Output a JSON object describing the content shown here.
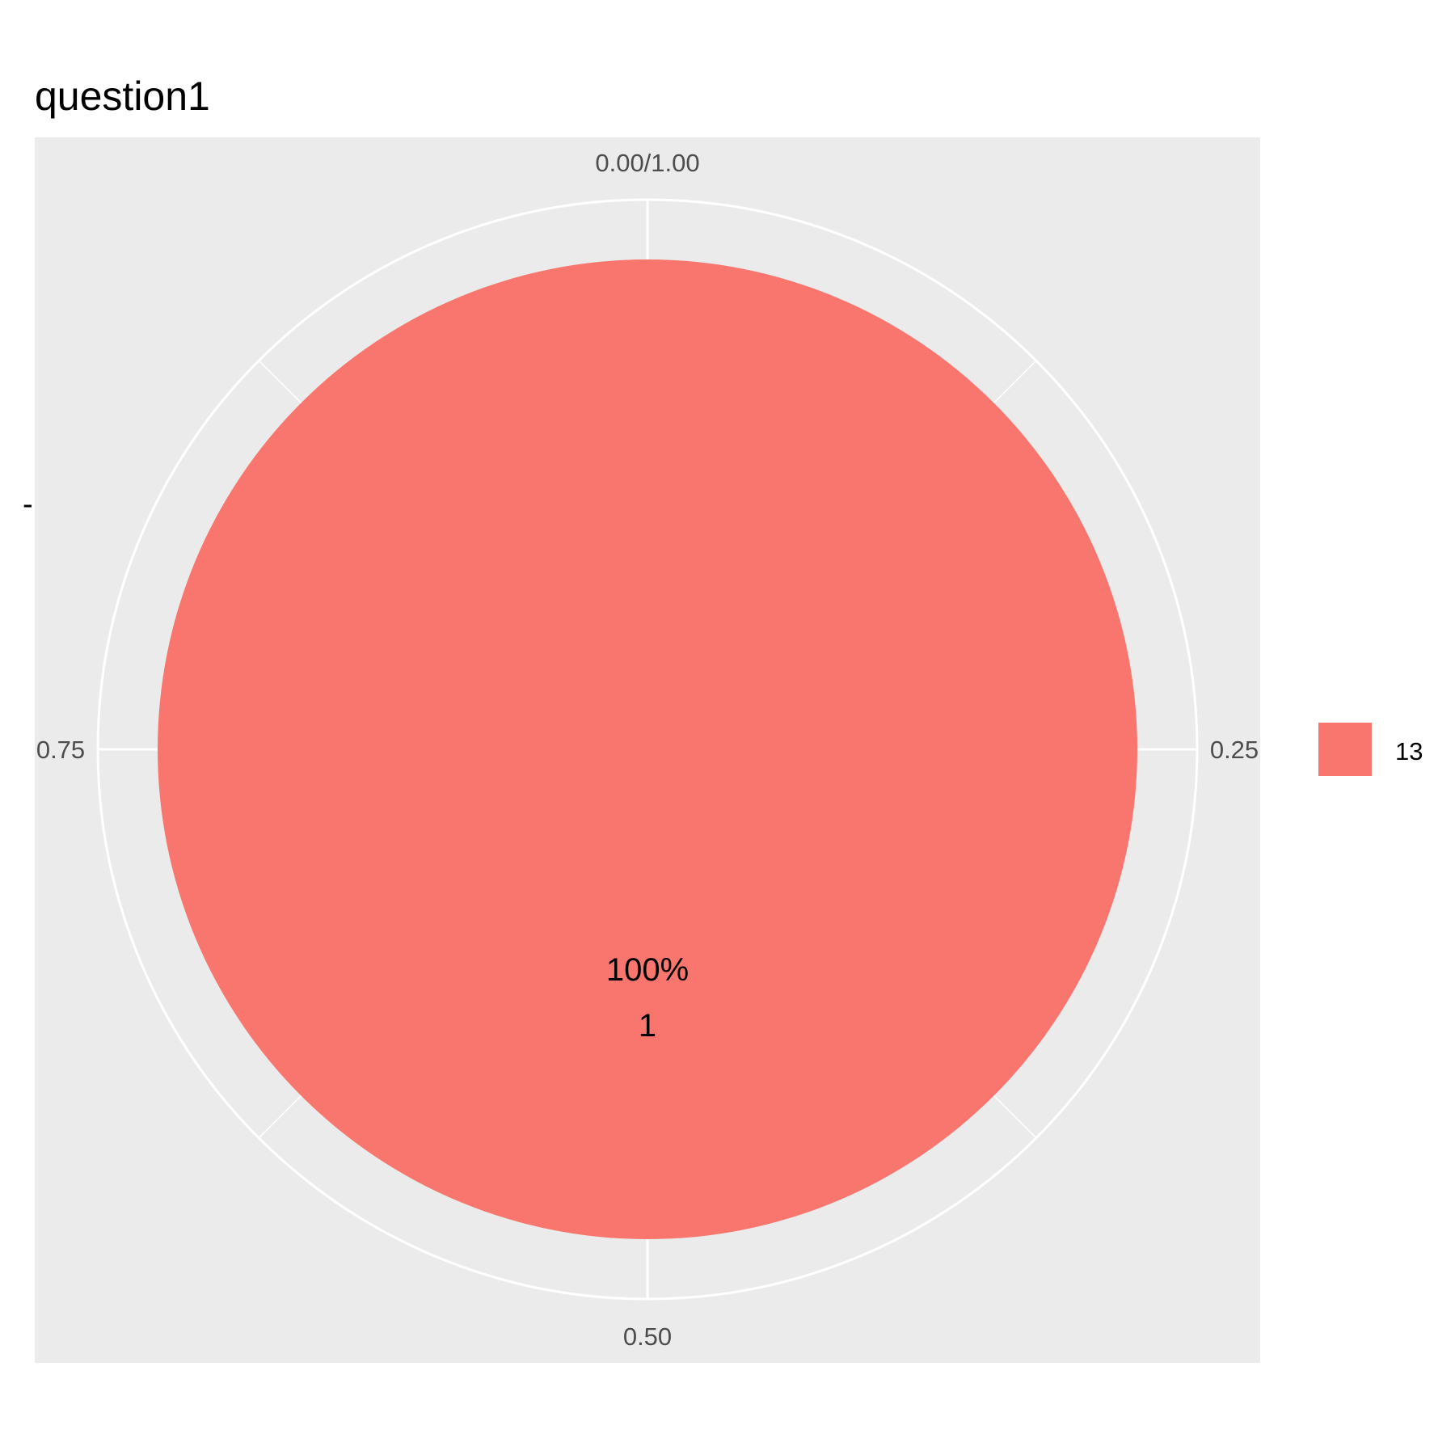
{
  "chart_data": {
    "type": "pie",
    "title": "question1",
    "y_tick_label": "-",
    "angular_ticks": [
      {
        "value": 0,
        "label": "0.00/1.00"
      },
      {
        "value": 0.25,
        "label": "0.25"
      },
      {
        "value": 0.5,
        "label": "0.50"
      },
      {
        "value": 0.75,
        "label": "0.75"
      }
    ],
    "slices": [
      {
        "category": "13",
        "count": 1,
        "fraction": 1.0,
        "percent_label": "100%",
        "count_label": "1",
        "color": "#f8766d"
      }
    ],
    "legend": {
      "position": "right",
      "entries": [
        {
          "label": "13",
          "color": "#f8766d"
        }
      ]
    },
    "panel_background": "#ebebeb",
    "grid_color": "#ffffff",
    "grid": true
  }
}
